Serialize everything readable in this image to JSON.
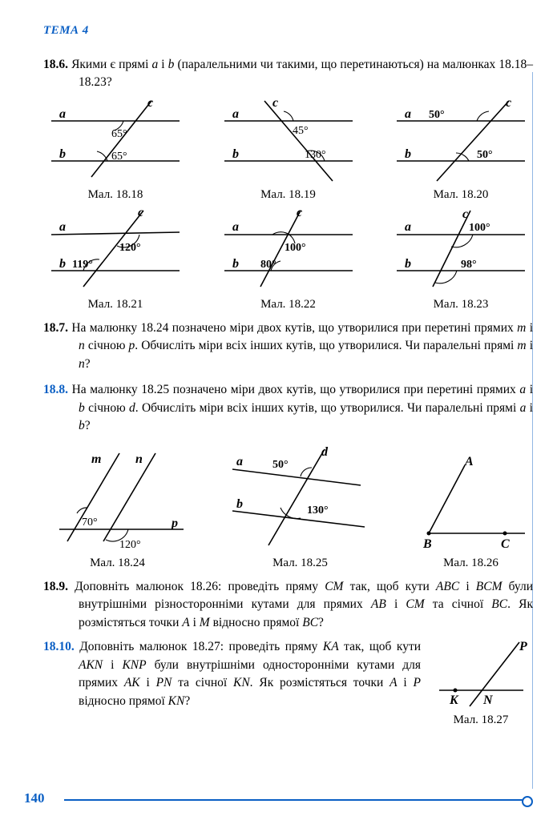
{
  "header": "ТЕМА 4",
  "page_number": "140",
  "problems": {
    "p186": {
      "num": "18.6.",
      "text": "Якими є прямі <span class='it'>a</span> і <span class='it'>b</span> (паралельними чи такими, що перетинаються) на малюнках 18.18–18.23?"
    },
    "p187": {
      "num": "18.7.",
      "text": "На малюнку 18.24 позначено міри двох кутів, що утворилися при перетині прямих <span class='it'>m</span> і <span class='it'>n</span> січною <span class='it'>p</span>. Обчисліть міри всіх інших кутів, що утворилися. Чи паралельні прямі <span class='it'>m</span> і <span class='it'>n</span>?"
    },
    "p188": {
      "num": "18.8.",
      "text": "На малюнку 18.25 позначено міри двох кутів, що утворилися при перетині прямих <span class='it'>a</span> і <span class='it'>b</span> січною <span class='it'>d</span>. Обчисліть міри всіх інших кутів, що утворилися. Чи паралельні прямі <span class='it'>a</span> і <span class='it'>b</span>?"
    },
    "p189": {
      "num": "18.9.",
      "text": "Доповніть малюнок 18.26: проведіть пряму <span class='it'>CM</span> так, щоб кути <span class='it'>ABC</span> і <span class='it'>BCM</span> були внутрішніми різносторонніми кутами для прямих <span class='it'>AB</span> і <span class='it'>CM</span> та січної <span class='it'>BC</span>. Як розмістяться точки <span class='it'>A</span> і <span class='it'>M</span> відносно прямої <span class='it'>BC</span>?"
    },
    "p1810": {
      "num": "18.10.",
      "text": "Доповніть малюнок 18.27: проведіть пряму <span class='it'>KA</span> так, щоб кути <span class='it'>AKN</span> і <span class='it'>KNP</span> були внутрішніми односторонніми кутами для прямих <span class='it'>AK</span> і <span class='it'>PN</span> та січної <span class='it'>KN</span>. Як розмістяться точки <span class='it'>A</span> і <span class='it'>P</span> відносно прямої <span class='it'>KN</span>?"
    }
  },
  "figs": {
    "f1818": {
      "cap": "Мал. 18.18",
      "a1": "65°",
      "a2": "65°",
      "la": "a",
      "lb": "b",
      "lc": "c",
      "colors": {
        "line": "#000"
      }
    },
    "f1819": {
      "cap": "Мал. 18.19",
      "a1": "45°",
      "a2": "130°",
      "la": "a",
      "lb": "b",
      "lc": "c"
    },
    "f1820": {
      "cap": "Мал. 18.20",
      "a1": "50°",
      "a2": "50°",
      "la": "a",
      "lb": "b",
      "lc": "c"
    },
    "f1821": {
      "cap": "Мал. 18.21",
      "a1": "120°",
      "a2": "119°",
      "la": "a",
      "lb": "b",
      "lc": "c"
    },
    "f1822": {
      "cap": "Мал. 18.22",
      "a1": "100°",
      "a2": "80°",
      "la": "a",
      "lb": "b",
      "lc": "c"
    },
    "f1823": {
      "cap": "Мал. 18.23",
      "a1": "100°",
      "a2": "98°",
      "la": "a",
      "lb": "b",
      "lc": "c"
    },
    "f1824": {
      "cap": "Мал. 18.24",
      "a1": "70°",
      "a2": "120°",
      "lm": "m",
      "ln": "n",
      "lp": "p"
    },
    "f1825": {
      "cap": "Мал. 18.25",
      "a1": "50°",
      "a2": "130°",
      "la": "a",
      "lb": "b",
      "ld": "d"
    },
    "f1826": {
      "cap": "Мал. 18.26",
      "lA": "A",
      "lB": "B",
      "lC": "C"
    },
    "f1827": {
      "cap": "Мал. 18.27",
      "lK": "K",
      "lN": "N",
      "lP": "P"
    }
  },
  "style": {
    "stroke": "#000000",
    "stroke_width": 1.6,
    "arc_stroke": "#000",
    "arc_width": 1.2,
    "accent": "#0a5fc4",
    "bg": "#ffffff"
  }
}
